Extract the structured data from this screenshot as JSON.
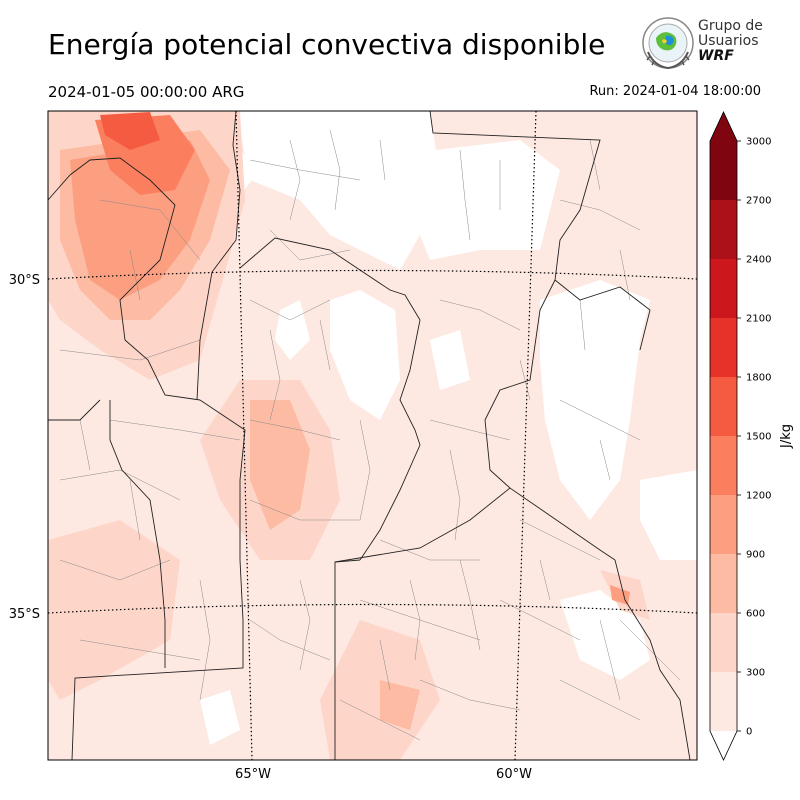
{
  "header": {
    "title": "Energía potencial convectiva disponible",
    "valid_time": "2024-01-05 00:00:00 ARG",
    "run_time": "Run: 2024-01-04 18:00:00"
  },
  "logo": {
    "line1": "Grupo de",
    "line2": "Usuarios",
    "line3": "WRF",
    "icon": "globe-emblem-icon"
  },
  "map": {
    "lat_labels": [
      "30°S",
      "35°S"
    ],
    "lon_labels": [
      "65°W",
      "60°W"
    ],
    "field": "CAPE"
  },
  "colorbar": {
    "unit": "J/kg",
    "ticks": [
      "0",
      "300",
      "600",
      "900",
      "1200",
      "1500",
      "1800",
      "2100",
      "2400",
      "2700",
      "3000"
    ],
    "colors": [
      "#fee9e2",
      "#fdd6c9",
      "#fcbba2",
      "#fc9f81",
      "#fb7f5f",
      "#f45b41",
      "#e63228",
      "#cc181d",
      "#ac1117",
      "#7f0611"
    ],
    "extend": "both"
  }
}
